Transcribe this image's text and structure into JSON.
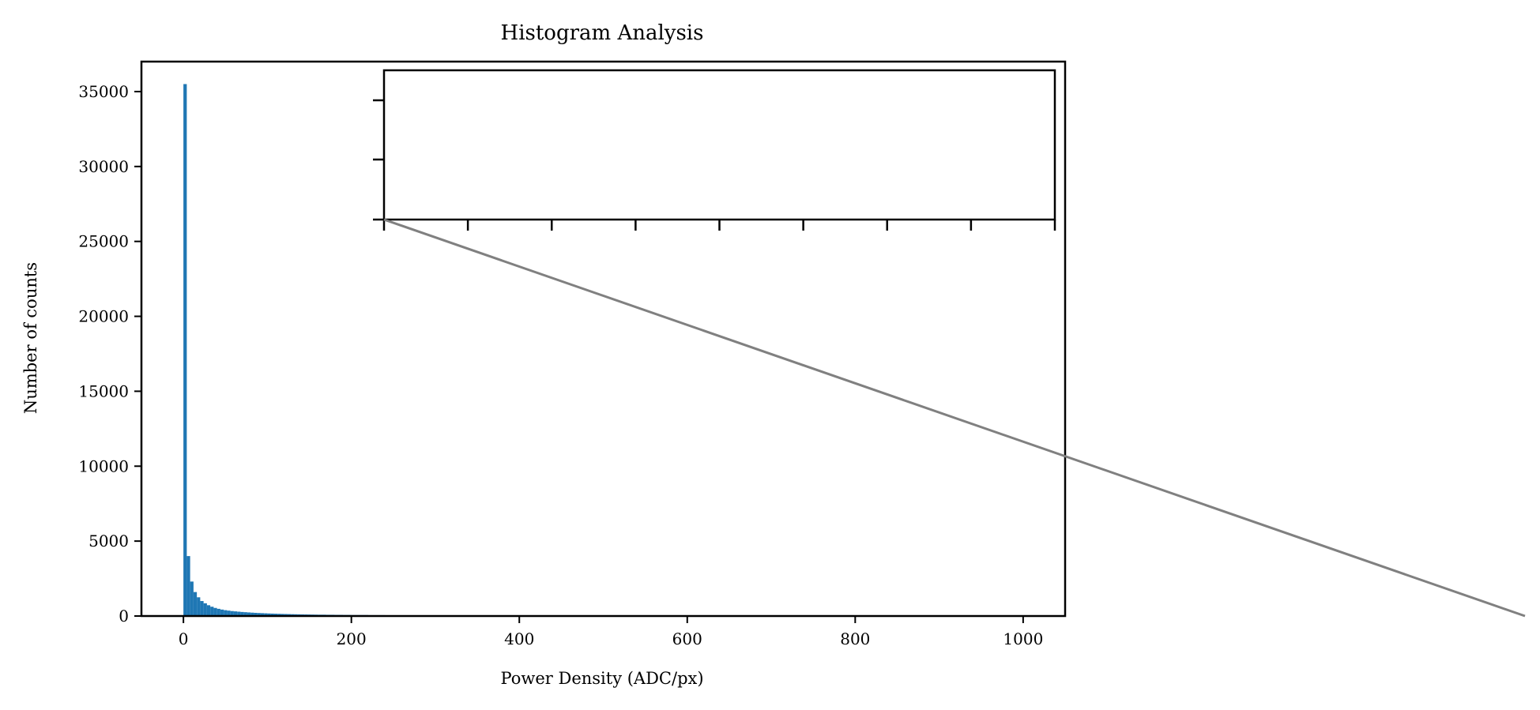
{
  "chart_data": {
    "type": "bar",
    "title": "Histogram Analysis",
    "xlabel": "Power Density (ADC/px)",
    "ylabel": "Number of counts",
    "xlim": [
      -50,
      1050
    ],
    "ylim": [
      0,
      37000
    ],
    "x_ticks": [
      "0",
      "200",
      "400",
      "600",
      "800",
      "1000"
    ],
    "y_ticks": [
      "0",
      "5000",
      "10000",
      "15000",
      "20000",
      "25000",
      "30000",
      "35000"
    ],
    "bin_width": 4,
    "bins_start": [
      0,
      4,
      8,
      12,
      16,
      20,
      24,
      28,
      32,
      36,
      40,
      44,
      48,
      52,
      56,
      60,
      64,
      68,
      72,
      76,
      80,
      84,
      88,
      92,
      96,
      100,
      104,
      108,
      112,
      116,
      120,
      124,
      128,
      132,
      136,
      140,
      144,
      148,
      152,
      156,
      160,
      170,
      180,
      190,
      200,
      220,
      240,
      260,
      280,
      300,
      340,
      380,
      420,
      460,
      500,
      600,
      700,
      800,
      900
    ],
    "values": [
      35500,
      4000,
      2300,
      1600,
      1250,
      1000,
      850,
      720,
      620,
      540,
      480,
      430,
      390,
      360,
      330,
      310,
      290,
      270,
      255,
      240,
      225,
      212,
      200,
      190,
      180,
      170,
      162,
      154,
      147,
      140,
      134,
      128,
      122,
      117,
      112,
      108,
      104,
      100,
      96,
      92,
      88,
      82,
      76,
      70,
      64,
      56,
      48,
      42,
      36,
      30,
      24,
      18,
      14,
      10,
      8,
      5,
      4,
      3,
      2
    ],
    "bar_color": "#1f77b4",
    "grid": false,
    "inset": {
      "present": true,
      "empty": true,
      "connector_color": "#808080"
    }
  }
}
